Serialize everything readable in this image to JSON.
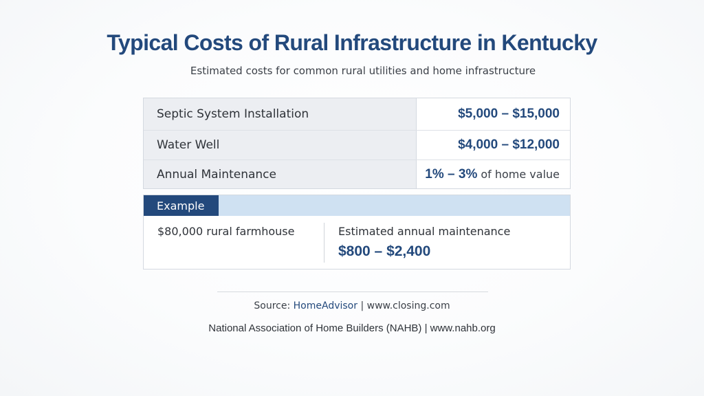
{
  "header": {
    "title": "Typical Costs of Rural Infrastructure in Kentucky",
    "subtitle": "Estimated costs for common rural utilities and home infrastructure"
  },
  "costs": [
    {
      "label": "Septic System Installation",
      "value": "$5,000 – $15,000"
    },
    {
      "label": "Water Well",
      "value": "$4,000 – $12,000"
    },
    {
      "label": "Annual Maintenance",
      "value": "1% – 3%",
      "suffix": "of home value"
    }
  ],
  "example": {
    "heading": "Example",
    "property": "$80,000 rural farmhouse",
    "estimate_label": "Estimated annual maintenance",
    "estimate_value": "$800 – $2,400"
  },
  "sources": {
    "line1_prefix": "Source: ",
    "line1_link": "HomeAdvisor",
    "line1_rest": " | www.closing.com",
    "line2": "National Association of Home Builders (NAHB) | www.nahb.org"
  },
  "colors": {
    "accent": "#23497c",
    "example_band": "#cfe1f2",
    "label_cell": "#eceef2"
  }
}
